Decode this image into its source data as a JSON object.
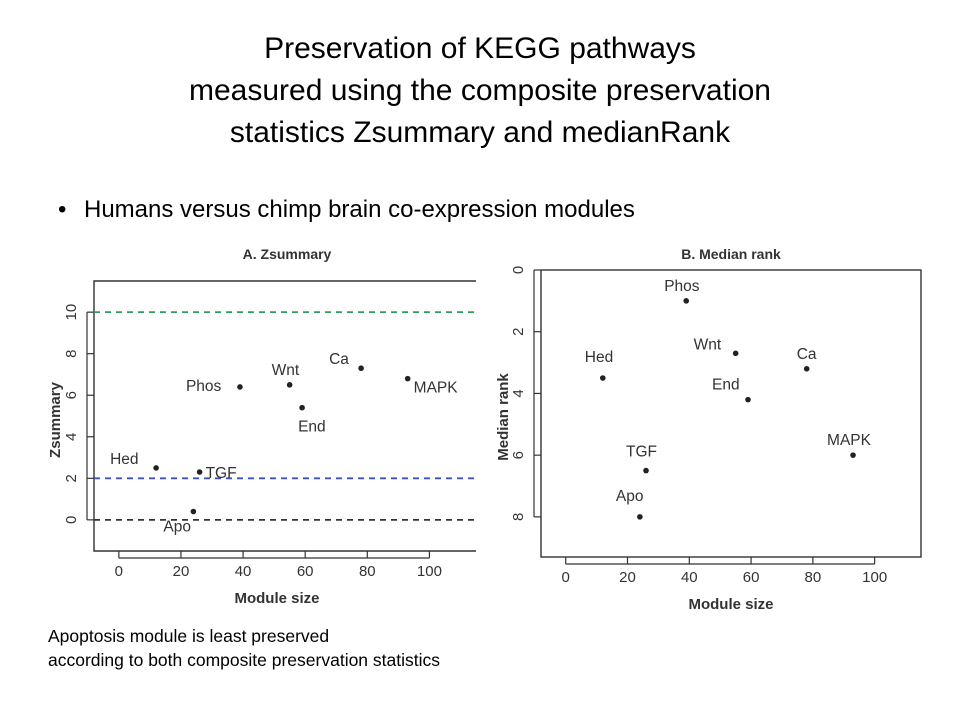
{
  "slide": {
    "title_lines": [
      "Preservation of KEGG pathways",
      "measured using the composite preservation",
      "statistics Zsummary and medianRank"
    ],
    "bullet": "Humans versus chimp brain co-expression modules",
    "caption_lines": [
      "Apoptosis module is least preserved",
      "according to both composite preservation statistics"
    ]
  },
  "chart_data": [
    {
      "type": "scatter",
      "title": "A. Zsummary",
      "xlabel": "Module size",
      "ylabel": "Zsummary",
      "xlim": [
        -8,
        115
      ],
      "ylim": [
        -1.5,
        11.5
      ],
      "xticks": [
        0,
        20,
        40,
        60,
        80,
        100
      ],
      "yticks": [
        0,
        2,
        4,
        6,
        8,
        10
      ],
      "hlines": [
        {
          "y": 10,
          "color": "#2ca05a"
        },
        {
          "y": 2,
          "color": "#3b55c8"
        },
        {
          "y": 0,
          "color": "#333333"
        }
      ],
      "points": [
        {
          "label": "Hed",
          "x": 12,
          "y": 2.5
        },
        {
          "label": "TGF",
          "x": 26,
          "y": 2.3
        },
        {
          "label": "Apo",
          "x": 24,
          "y": 0.4
        },
        {
          "label": "Phos",
          "x": 39,
          "y": 6.4
        },
        {
          "label": "Wnt",
          "x": 55,
          "y": 6.5
        },
        {
          "label": "End",
          "x": 59,
          "y": 5.4
        },
        {
          "label": "Ca",
          "x": 78,
          "y": 7.3
        },
        {
          "label": "MAPK",
          "x": 93,
          "y": 6.8
        }
      ]
    },
    {
      "type": "scatter",
      "title": "B. Median rank",
      "xlabel": "Module size",
      "ylabel": "Median rank",
      "xlim": [
        -8,
        115
      ],
      "ylim": [
        9.3,
        0
      ],
      "xticks": [
        0,
        20,
        40,
        60,
        80,
        100
      ],
      "yticks": [
        0,
        2,
        4,
        6,
        8
      ],
      "points": [
        {
          "label": "Phos",
          "x": 39,
          "y": 1
        },
        {
          "label": "Hed",
          "x": 12,
          "y": 3.5
        },
        {
          "label": "Wnt",
          "x": 55,
          "y": 2.7
        },
        {
          "label": "Ca",
          "x": 78,
          "y": 3.2
        },
        {
          "label": "End",
          "x": 59,
          "y": 4.2
        },
        {
          "label": "MAPK",
          "x": 93,
          "y": 6
        },
        {
          "label": "TGF",
          "x": 26,
          "y": 6.5
        },
        {
          "label": "Apo",
          "x": 24,
          "y": 8
        }
      ]
    }
  ]
}
